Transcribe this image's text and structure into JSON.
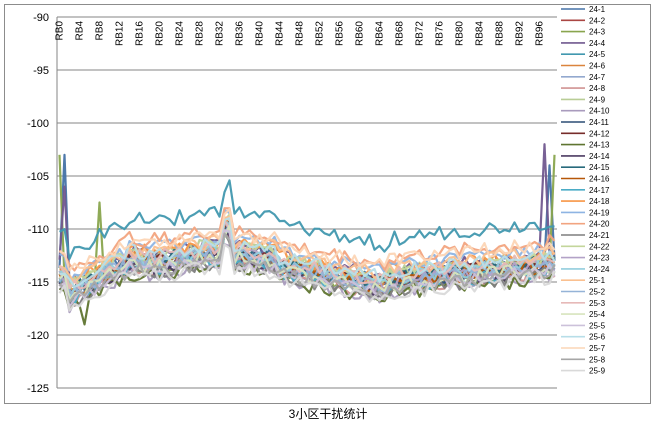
{
  "chart_data": {
    "type": "line",
    "title": "",
    "caption": "3小区干扰统计",
    "xlabel": "",
    "ylabel": "",
    "ylim": [
      -125,
      -90
    ],
    "yticks": [
      -90,
      -95,
      -100,
      -105,
      -110,
      -115,
      -120,
      -125
    ],
    "x_tick_labels": [
      "RB0",
      "RB4",
      "RB8",
      "RB12",
      "RB16",
      "RB20",
      "RB24",
      "RB28",
      "RB32",
      "RB36",
      "RB40",
      "RB44",
      "RB48",
      "RB52",
      "RB56",
      "RB60",
      "RB64",
      "RB68",
      "RB72",
      "RB76",
      "RB80",
      "RB84",
      "RB88",
      "RB92",
      "RB96"
    ],
    "x_count": 100,
    "grid": "horizontal",
    "legend_position": "right",
    "series": [
      {
        "name": "24-1",
        "color": "#4572A7",
        "base": -112.5,
        "spikes": [
          [
            1,
            -103
          ],
          [
            98,
            -104
          ]
        ]
      },
      {
        "name": "24-2",
        "color": "#AA4643",
        "base": -113.0,
        "spikes": []
      },
      {
        "name": "24-3",
        "color": "#89A54E",
        "base": -113.5,
        "spikes": [
          [
            0,
            -103
          ],
          [
            8,
            -107.5
          ],
          [
            99,
            -103
          ]
        ]
      },
      {
        "name": "24-4",
        "color": "#71588F",
        "base": -112.0,
        "spikes": [
          [
            1,
            -106
          ],
          [
            97,
            -102
          ]
        ]
      },
      {
        "name": "24-5",
        "color": "#4198AF",
        "base": -109.0,
        "spikes": []
      },
      {
        "name": "24-6",
        "color": "#DB843D",
        "base": -112.8,
        "spikes": []
      },
      {
        "name": "24-7",
        "color": "#93A9CF",
        "base": -113.2,
        "spikes": []
      },
      {
        "name": "24-8",
        "color": "#D19392",
        "base": -113.6,
        "spikes": []
      },
      {
        "name": "24-9",
        "color": "#B9CD96",
        "base": -112.2,
        "spikes": []
      },
      {
        "name": "24-10",
        "color": "#A99BBD",
        "base": -114.0,
        "spikes": []
      },
      {
        "name": "24-11",
        "color": "#2C4D75",
        "base": -113.0,
        "spikes": []
      },
      {
        "name": "24-12",
        "color": "#772C2A",
        "base": -112.8,
        "spikes": []
      },
      {
        "name": "24-13",
        "color": "#5F7530",
        "base": -114.2,
        "spikes": [
          [
            5,
            -119
          ]
        ]
      },
      {
        "name": "24-14",
        "color": "#4D3B62",
        "base": -113.4,
        "spikes": []
      },
      {
        "name": "24-15",
        "color": "#276A7C",
        "base": -112.6,
        "spikes": []
      },
      {
        "name": "24-16",
        "color": "#B65708",
        "base": -113.1,
        "spikes": []
      },
      {
        "name": "24-17",
        "color": "#4BACC6",
        "base": -113.5,
        "spikes": []
      },
      {
        "name": "24-18",
        "color": "#F79646",
        "base": -112.0,
        "spikes": []
      },
      {
        "name": "24-19",
        "color": "#8EB4E3",
        "base": -111.5,
        "spikes": []
      },
      {
        "name": "24-20",
        "color": "#F2A480",
        "base": -110.8,
        "spikes": []
      },
      {
        "name": "24-21",
        "color": "#7F7F7F",
        "base": -113.8,
        "spikes": []
      },
      {
        "name": "24-22",
        "color": "#C3D69B",
        "base": -112.3,
        "spikes": []
      },
      {
        "name": "24-23",
        "color": "#B3A2C7",
        "base": -113.0,
        "spikes": []
      },
      {
        "name": "24-24",
        "color": "#93CDDD",
        "base": -112.7,
        "spikes": []
      },
      {
        "name": "25-1",
        "color": "#FAC090",
        "base": -111.8,
        "spikes": []
      },
      {
        "name": "25-2",
        "color": "#95B3D7",
        "base": -112.9,
        "spikes": []
      },
      {
        "name": "25-3",
        "color": "#E6B9B8",
        "base": -112.4,
        "spikes": []
      },
      {
        "name": "25-4",
        "color": "#D7E4BD",
        "base": -113.3,
        "spikes": []
      },
      {
        "name": "25-5",
        "color": "#CCC1DA",
        "base": -113.6,
        "spikes": []
      },
      {
        "name": "25-6",
        "color": "#B7DEE8",
        "base": -112.1,
        "spikes": []
      },
      {
        "name": "25-7",
        "color": "#FCD5B5",
        "base": -111.0,
        "spikes": []
      },
      {
        "name": "25-8",
        "color": "#A6A6A6",
        "base": -113.7,
        "spikes": []
      },
      {
        "name": "25-9",
        "color": "#D9D9D9",
        "base": -114.2,
        "spikes": []
      }
    ]
  }
}
